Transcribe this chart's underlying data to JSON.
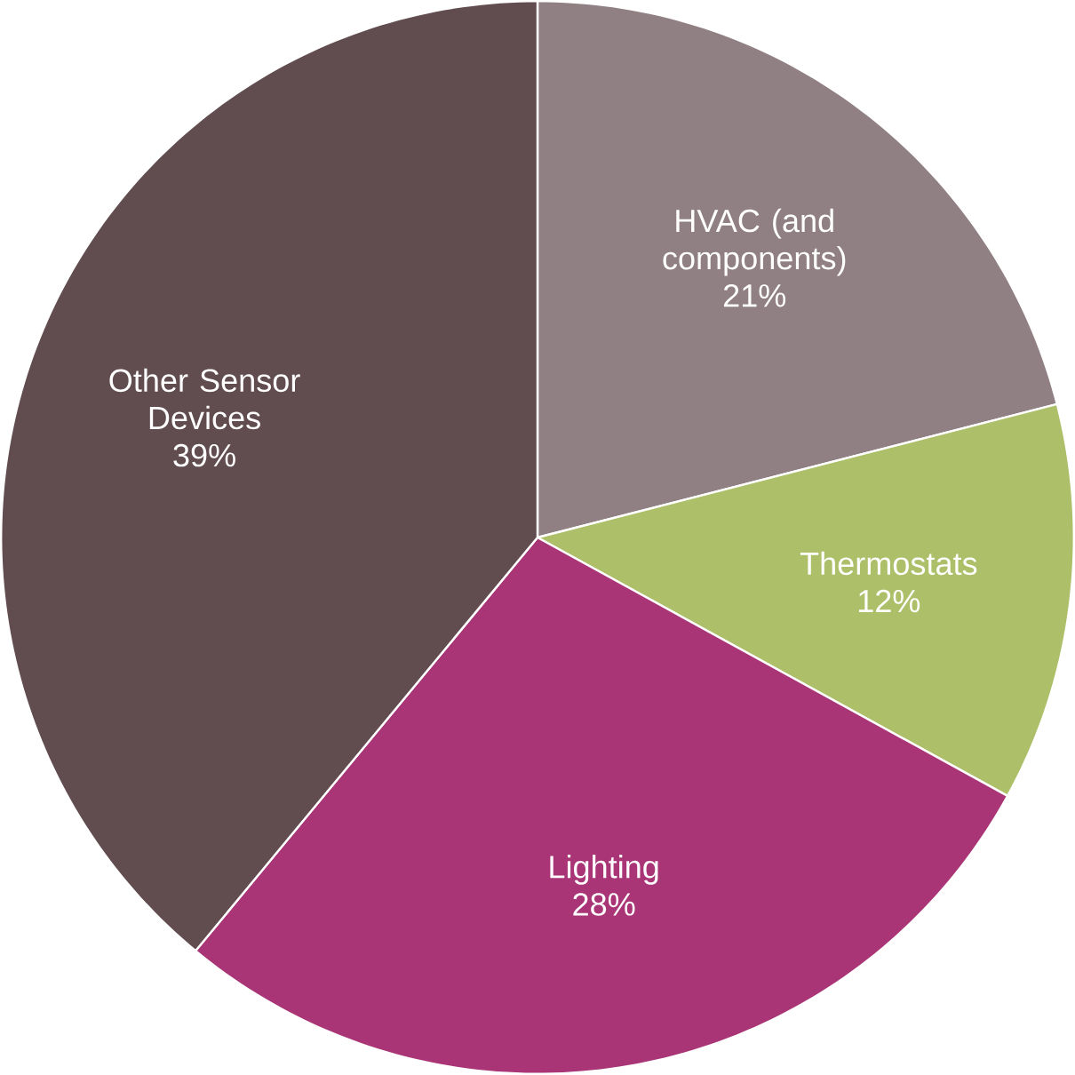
{
  "chart_data": {
    "type": "pie",
    "categories": [
      "HVAC (and components)",
      "Thermostats",
      "Lighting",
      "Other Sensor Devices"
    ],
    "values": [
      21,
      12,
      28,
      39
    ],
    "value_labels": [
      "21%",
      "12%",
      "28%",
      "39%"
    ],
    "colors": [
      "#918083",
      "#adbf69",
      "#a93576",
      "#614c50"
    ]
  }
}
